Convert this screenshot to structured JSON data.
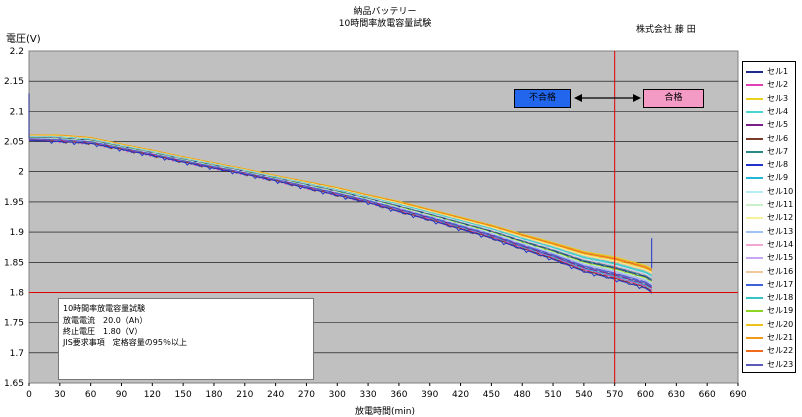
{
  "header": {
    "title": "納品バッテリー",
    "subtitle": "10時間率放電容量試験",
    "company": "株式会社 藤 田"
  },
  "chart_data": {
    "type": "line",
    "ylabel": "電圧(V)",
    "xlabel": "放電時間(min)",
    "xlim": [
      0,
      690
    ],
    "ylim": [
      1.65,
      2.2
    ],
    "x_ticks": [
      "0",
      "30",
      "60",
      "90",
      "120",
      "150",
      "180",
      "210",
      "240",
      "270",
      "300",
      "330",
      "360",
      "390",
      "420",
      "450",
      "480",
      "510",
      "540",
      "570",
      "600",
      "630",
      "660",
      "690"
    ],
    "y_ticks": [
      "2.2",
      "2.15",
      "2.1",
      "2.05",
      "2",
      "1.95",
      "1.9",
      "1.85",
      "1.8",
      "1.75",
      "1.7",
      "1.65"
    ],
    "grid": true,
    "legend_position": "right",
    "reference_lines": {
      "end_voltage": 1.8,
      "time_limit": 570
    },
    "spike": {
      "x": 0,
      "y": 2.13
    },
    "end_rise": {
      "x": 606,
      "y": 1.89
    },
    "envelope": {
      "x": [
        0,
        30,
        60,
        90,
        120,
        150,
        180,
        210,
        240,
        270,
        300,
        330,
        360,
        390,
        420,
        450,
        480,
        510,
        540,
        570,
        600,
        606
      ],
      "upper": [
        2.061,
        2.061,
        2.057,
        2.046,
        2.036,
        2.025,
        2.015,
        2.005,
        1.994,
        1.984,
        1.974,
        1.962,
        1.951,
        1.938,
        1.925,
        1.912,
        1.897,
        1.883,
        1.868,
        1.859,
        1.845,
        1.84
      ],
      "lower": [
        2.052,
        2.05,
        2.047,
        2.037,
        2.027,
        2.016,
        2.006,
        1.996,
        1.985,
        1.973,
        1.961,
        1.949,
        1.934,
        1.92,
        1.905,
        1.89,
        1.872,
        1.855,
        1.835,
        1.822,
        1.807,
        1.8
      ]
    },
    "series": [
      {
        "name": "セル1",
        "color": "#1f2a8a"
      },
      {
        "name": "セル2",
        "color": "#e03fb5"
      },
      {
        "name": "セル3",
        "color": "#e8d21e"
      },
      {
        "name": "セル4",
        "color": "#46d6d4"
      },
      {
        "name": "セル5",
        "color": "#7a1f8a"
      },
      {
        "name": "セル6",
        "color": "#7a3b2a"
      },
      {
        "name": "セル7",
        "color": "#2a8a8a"
      },
      {
        "name": "セル8",
        "color": "#2233cc"
      },
      {
        "name": "セル9",
        "color": "#23b6d6"
      },
      {
        "name": "セル10",
        "color": "#b6ecf2"
      },
      {
        "name": "セル11",
        "color": "#c9f0c9"
      },
      {
        "name": "セル12",
        "color": "#f6f29a"
      },
      {
        "name": "セル13",
        "color": "#9ec5f0"
      },
      {
        "name": "セル14",
        "color": "#f2a6d2"
      },
      {
        "name": "セル15",
        "color": "#c8a6f0"
      },
      {
        "name": "セル16",
        "color": "#f2c79a"
      },
      {
        "name": "セル17",
        "color": "#3b62d6"
      },
      {
        "name": "セル18",
        "color": "#38c4c4"
      },
      {
        "name": "セル19",
        "color": "#8ad622"
      },
      {
        "name": "セル20",
        "color": "#f0c21c"
      },
      {
        "name": "セル21",
        "color": "#f09a1c"
      },
      {
        "name": "セル22",
        "color": "#f06a1c"
      },
      {
        "name": "セル23",
        "color": "#5a5ab8"
      }
    ]
  },
  "badges": {
    "fail": "不合格",
    "pass": "合格"
  },
  "notes": {
    "line1": "10時間率放電容量試験",
    "line2": "放電電流　20.0（Ah）",
    "line3": "終止電圧　1.80（V）",
    "line4": "JIS要求事項　定格容量の95％以上"
  }
}
